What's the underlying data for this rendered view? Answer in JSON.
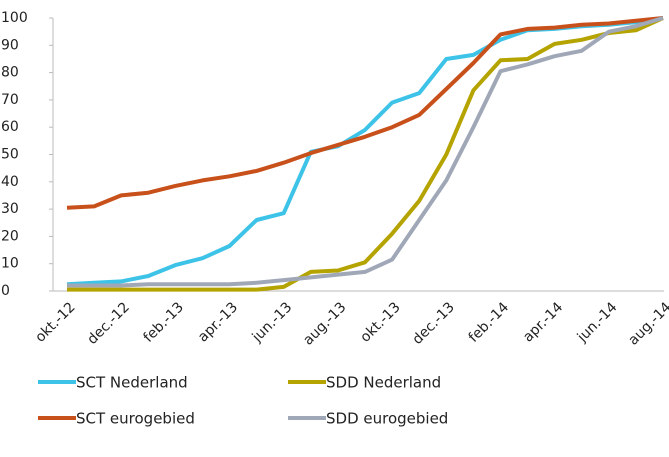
{
  "chart_data": {
    "type": "line",
    "categories": [
      "okt.-12",
      null,
      "dec.-12",
      null,
      "feb.-13",
      null,
      "apr.-13",
      null,
      "jun.-13",
      null,
      "aug.-13",
      null,
      "okt.-13",
      null,
      "dec.-13",
      null,
      "feb.-14",
      null,
      "apr.-14",
      null,
      "jun.-14",
      null,
      "aug.-14"
    ],
    "series": [
      {
        "name": "SCT Nederland",
        "color": "#3ec3e8",
        "values": [
          2.5,
          3,
          3.5,
          5.5,
          9.5,
          12,
          16.5,
          26,
          28.5,
          51,
          53,
          59,
          69,
          72.5,
          85,
          86.5,
          92,
          95.5,
          96,
          97,
          97.5,
          98.5,
          100
        ]
      },
      {
        "name": "SDD Nederland",
        "color": "#b5a300",
        "values": [
          0.5,
          0.5,
          0.5,
          0.5,
          0.5,
          0.5,
          0.5,
          0.5,
          1.5,
          7,
          7.5,
          10.5,
          21,
          33,
          50,
          73.5,
          84.5,
          85,
          90.5,
          92,
          94.5,
          95.5,
          100
        ]
      },
      {
        "name": "SCT eurogebied",
        "color": "#c8501a",
        "values": [
          30.5,
          31,
          35,
          36,
          38.5,
          40.5,
          42,
          44,
          47,
          50.5,
          53.5,
          56.5,
          60,
          64.5,
          74,
          83.5,
          94,
          96,
          96.5,
          97.5,
          98,
          99,
          100
        ]
      },
      {
        "name": "SDD eurogebied",
        "color": "#a0a8b8",
        "values": [
          2,
          2,
          2,
          2.5,
          2.5,
          2.5,
          2.5,
          3,
          4,
          5,
          6,
          7,
          11.5,
          26,
          40.5,
          60,
          80.5,
          83,
          86,
          88,
          95,
          97,
          100
        ]
      }
    ],
    "ylim": [
      0,
      100
    ],
    "yticks": [
      0,
      10,
      20,
      30,
      40,
      50,
      60,
      70,
      80,
      90,
      100
    ]
  }
}
